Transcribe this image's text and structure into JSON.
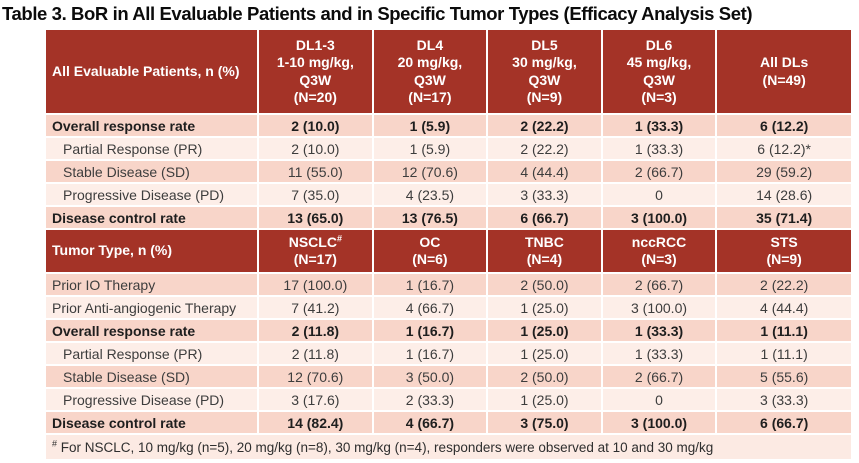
{
  "title": "Table 3. BoR in All Evaluable Patients and in Specific Tumor Types (Efficacy Analysis Set)",
  "colors": {
    "header_bg": "#A43327",
    "row_dark_pink": "#F8D5C9",
    "row_light_pink": "#FDEEE8",
    "footnote_bg": "#FCEAE3",
    "header_text": "#FFFFFF",
    "body_text": "#3D3D3D"
  },
  "section1": {
    "header": {
      "label": "All Evaluable Patients, n (%)",
      "columns": [
        {
          "lines": [
            "DL1-3",
            "1-10 mg/kg,",
            "Q3W",
            "(N=20)"
          ]
        },
        {
          "lines": [
            "DL4",
            "20 mg/kg,",
            "Q3W",
            "(N=17)"
          ]
        },
        {
          "lines": [
            "DL5",
            "30 mg/kg,",
            "Q3W",
            "(N=9)"
          ]
        },
        {
          "lines": [
            "DL6",
            "45 mg/kg,",
            "Q3W",
            "(N=3)"
          ]
        },
        {
          "lines": [
            "All DLs",
            "(N=49)"
          ]
        }
      ]
    },
    "rows": [
      {
        "label": "Overall response rate",
        "bold": true,
        "indent": false,
        "values": [
          "2 (10.0)",
          "1 (5.9)",
          "2 (22.2)",
          "1 (33.3)",
          "6 (12.2)"
        ]
      },
      {
        "label": "Partial Response (PR)",
        "bold": false,
        "indent": true,
        "values": [
          "2 (10.0)",
          "1 (5.9)",
          "2 (22.2)",
          "1 (33.3)",
          "6 (12.2)*"
        ]
      },
      {
        "label": "Stable Disease (SD)",
        "bold": false,
        "indent": true,
        "values": [
          "11 (55.0)",
          "12 (70.6)",
          "4 (44.4)",
          "2 (66.7)",
          "29 (59.2)"
        ]
      },
      {
        "label": "Progressive Disease (PD)",
        "bold": false,
        "indent": true,
        "values": [
          "7 (35.0)",
          "4 (23.5)",
          "3 (33.3)",
          "0",
          "14 (28.6)"
        ]
      },
      {
        "label": "Disease control rate",
        "bold": true,
        "indent": false,
        "values": [
          "13 (65.0)",
          "13 (76.5)",
          "6 (66.7)",
          "3 (100.0)",
          "35 (71.4)"
        ]
      }
    ]
  },
  "section2": {
    "header": {
      "label": "Tumor Type, n (%)",
      "columns": [
        {
          "name": "NSCLC",
          "sup": "#",
          "n": "(N=17)"
        },
        {
          "name": "OC",
          "sup": "",
          "n": "(N=6)"
        },
        {
          "name": "TNBC",
          "sup": "",
          "n": "(N=4)"
        },
        {
          "name": "nccRCC",
          "sup": "",
          "n": "(N=3)"
        },
        {
          "name": "STS",
          "sup": "",
          "n": "(N=9)"
        }
      ]
    },
    "rows": [
      {
        "label": "Prior IO Therapy",
        "bold": false,
        "indent": false,
        "values": [
          "17 (100.0)",
          "1 (16.7)",
          "2 (50.0)",
          "2 (66.7)",
          "2 (22.2)"
        ]
      },
      {
        "label": "Prior Anti-angiogenic Therapy",
        "bold": false,
        "indent": false,
        "values": [
          "7 (41.2)",
          "4 (66.7)",
          "1 (25.0)",
          "3 (100.0)",
          "4 (44.4)"
        ]
      },
      {
        "label": "Overall response rate",
        "bold": true,
        "indent": false,
        "values": [
          "2 (11.8)",
          "1 (16.7)",
          "1 (25.0)",
          "1 (33.3)",
          "1 (11.1)"
        ]
      },
      {
        "label": "Partial Response (PR)",
        "bold": false,
        "indent": true,
        "values": [
          "2 (11.8)",
          "1 (16.7)",
          "1 (25.0)",
          "1 (33.3)",
          "1 (11.1)"
        ]
      },
      {
        "label": "Stable Disease (SD)",
        "bold": false,
        "indent": true,
        "values": [
          "12 (70.6)",
          "3 (50.0)",
          "2 (50.0)",
          "2 (66.7)",
          "5 (55.6)"
        ]
      },
      {
        "label": "Progressive Disease (PD)",
        "bold": false,
        "indent": true,
        "values": [
          "3 (17.6)",
          "2 (33.3)",
          "1 (25.0)",
          "0",
          "3 (33.3)"
        ]
      },
      {
        "label": "Disease control rate",
        "bold": true,
        "indent": false,
        "values": [
          "14 (82.4)",
          "4 (66.7)",
          "3 (75.0)",
          "3 (100.0)",
          "6 (66.7)"
        ]
      }
    ]
  },
  "footnote": {
    "marker": "#",
    "text": "For NSCLC, 10 mg/kg (n=5), 20 mg/kg (n=8), 30 mg/kg (n=4), responders were observed at 10 and 30 mg/kg"
  }
}
